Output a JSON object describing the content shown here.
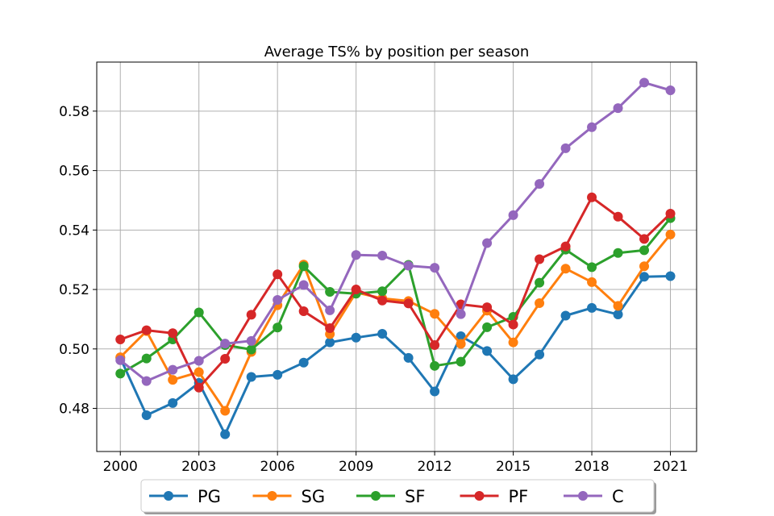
{
  "chart_data": {
    "type": "line",
    "title": "Average TS% by position per season",
    "xlabel": "",
    "ylabel": "",
    "x": [
      2000,
      2001,
      2002,
      2003,
      2004,
      2005,
      2006,
      2007,
      2008,
      2009,
      2010,
      2011,
      2012,
      2013,
      2014,
      2015,
      2016,
      2017,
      2018,
      2019,
      2020,
      2021
    ],
    "xlim": [
      1999.1,
      2022.0
    ],
    "ylim": [
      0.4655,
      0.5965
    ],
    "x_ticks": [
      2000,
      2003,
      2006,
      2009,
      2012,
      2015,
      2018,
      2021
    ],
    "x_tick_labels": [
      "2000",
      "2003",
      "2006",
      "2009",
      "2012",
      "2015",
      "2018",
      "2021"
    ],
    "y_ticks": [
      0.48,
      0.5,
      0.52,
      0.54,
      0.56,
      0.58
    ],
    "y_tick_labels": [
      "0.48",
      "0.50",
      "0.52",
      "0.54",
      "0.56",
      "0.58"
    ],
    "grid": true,
    "legend_position": "bottom-center",
    "series": [
      {
        "name": "PG",
        "color": "#1f77b4",
        "values": [
          0.497,
          0.4777,
          0.4818,
          0.4886,
          0.4713,
          0.4906,
          0.4913,
          0.4954,
          0.5022,
          0.5038,
          0.5051,
          0.497,
          0.4857,
          0.5043,
          0.4993,
          0.4898,
          0.4981,
          0.5112,
          0.5138,
          0.5116,
          0.5243,
          0.5245
        ]
      },
      {
        "name": "SG",
        "color": "#ff7f0e",
        "values": [
          0.4972,
          0.506,
          0.4896,
          0.4922,
          0.4792,
          0.499,
          0.5147,
          0.5284,
          0.505,
          0.519,
          0.517,
          0.5161,
          0.5118,
          0.5017,
          0.5129,
          0.5022,
          0.5154,
          0.527,
          0.5225,
          0.5145,
          0.5278,
          0.5385
        ]
      },
      {
        "name": "SF",
        "color": "#2ca02c",
        "values": [
          0.4917,
          0.4968,
          0.5032,
          0.5123,
          0.5013,
          0.4998,
          0.5072,
          0.5278,
          0.5192,
          0.5186,
          0.5194,
          0.5283,
          0.4943,
          0.4957,
          0.5073,
          0.5108,
          0.5223,
          0.5334,
          0.5275,
          0.5323,
          0.5332,
          0.544
        ]
      },
      {
        "name": "PF",
        "color": "#d62728",
        "values": [
          0.5032,
          0.5063,
          0.5053,
          0.487,
          0.4967,
          0.5115,
          0.5251,
          0.5127,
          0.507,
          0.52,
          0.5163,
          0.5153,
          0.5013,
          0.515,
          0.514,
          0.5082,
          0.5302,
          0.5345,
          0.551,
          0.5445,
          0.537,
          0.5455
        ]
      },
      {
        "name": "C",
        "color": "#9467bd",
        "values": [
          0.4962,
          0.4892,
          0.493,
          0.496,
          0.5018,
          0.5027,
          0.5165,
          0.5215,
          0.513,
          0.5316,
          0.5314,
          0.528,
          0.5273,
          0.5117,
          0.5356,
          0.545,
          0.5555,
          0.5675,
          0.5746,
          0.581,
          0.5896,
          0.587
        ]
      }
    ]
  }
}
